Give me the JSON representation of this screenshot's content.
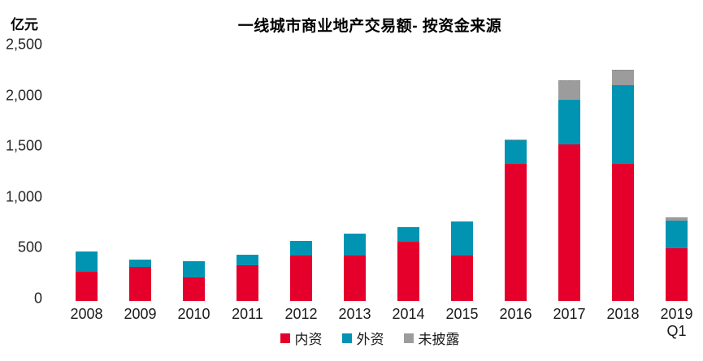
{
  "chart_data": {
    "type": "bar",
    "stacked": true,
    "title": "一线城市商业地产交易额- 按资金来源",
    "unit_label": "亿元",
    "categories": [
      "2008",
      "2009",
      "2010",
      "2011",
      "2012",
      "2013",
      "2014",
      "2015",
      "2016",
      "2017",
      "2018",
      "2019\nQ1"
    ],
    "series": [
      {
        "name": "内资",
        "key": "domestic-capital",
        "color": "#e4002b",
        "values": [
          285,
          335,
          235,
          350,
          450,
          450,
          585,
          450,
          1350,
          1545,
          1350,
          520
        ]
      },
      {
        "name": "外资",
        "key": "foreign-capital",
        "color": "#0094b2",
        "values": [
          200,
          70,
          155,
          105,
          145,
          215,
          145,
          330,
          230,
          440,
          775,
          270
        ]
      },
      {
        "name": "未披露",
        "key": "undisclosed",
        "color": "#9c9c9c",
        "values": [
          0,
          0,
          0,
          0,
          0,
          0,
          0,
          0,
          10,
          190,
          155,
          35
        ]
      }
    ],
    "totals": [
      485,
      405,
      390,
      455,
      595,
      665,
      730,
      780,
      1590,
      2175,
      2280,
      825
    ],
    "ylim": [
      0,
      2500
    ],
    "ytick_step": 500,
    "yticks": [
      "0",
      "500",
      "1,000",
      "1,500",
      "2,000",
      "2,500"
    ],
    "ylabel": "亿元",
    "xlabel": "",
    "grid": false,
    "legend_position": "bottom"
  }
}
